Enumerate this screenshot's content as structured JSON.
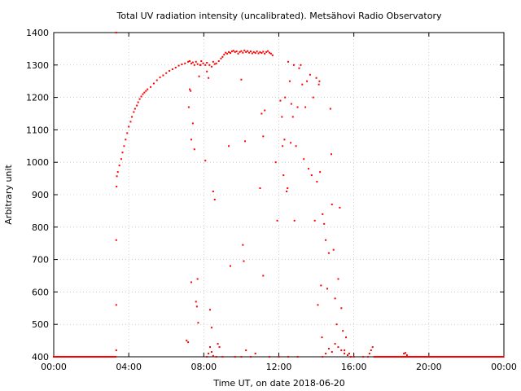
{
  "chart_data": {
    "type": "scatter",
    "title": "Total UV radiation intensity (uncalibrated). Metsähovi Radio Observatory",
    "xlabel": "Time UT, on date 2018-06-20",
    "ylabel": "Arbitrary unit",
    "xlim": [
      "00:00",
      "24:00"
    ],
    "ylim": [
      400,
      1400
    ],
    "x_ticks": [
      "00:00",
      "04:00",
      "08:00",
      "12:00",
      "16:00",
      "20:00",
      "00:00"
    ],
    "y_ticks": [
      400,
      500,
      600,
      700,
      800,
      900,
      1000,
      1100,
      1200,
      1300,
      1400
    ],
    "grid": true,
    "marker_color": "#ff0000",
    "series": [
      {
        "points": [
          [
            "03:20",
            1400
          ],
          [
            "03:20",
            420
          ],
          [
            "03:20",
            560
          ],
          [
            "03:20",
            760
          ],
          [
            "03:21",
            925
          ],
          [
            "03:22",
            957
          ],
          [
            "03:25",
            970
          ],
          [
            "03:30",
            990
          ],
          [
            "03:36",
            1010
          ],
          [
            "03:40",
            1030
          ],
          [
            "03:45",
            1050
          ],
          [
            "03:50",
            1070
          ],
          [
            "03:55",
            1090
          ],
          [
            "04:00",
            1110
          ],
          [
            "04:06",
            1125
          ],
          [
            "04:10",
            1140
          ],
          [
            "04:16",
            1155
          ],
          [
            "04:20",
            1165
          ],
          [
            "04:26",
            1175
          ],
          [
            "04:30",
            1185
          ],
          [
            "04:35",
            1195
          ],
          [
            "04:40",
            1203
          ],
          [
            "04:45",
            1210
          ],
          [
            "04:50",
            1215
          ],
          [
            "04:55",
            1220
          ],
          [
            "05:00",
            1225
          ],
          [
            "05:10",
            1232
          ],
          [
            "05:20",
            1243
          ],
          [
            "05:30",
            1253
          ],
          [
            "05:40",
            1262
          ],
          [
            "05:50",
            1268
          ],
          [
            "06:00",
            1275
          ],
          [
            "06:10",
            1282
          ],
          [
            "06:20",
            1287
          ],
          [
            "06:30",
            1292
          ],
          [
            "06:40",
            1298
          ],
          [
            "06:50",
            1302
          ],
          [
            "07:00",
            1305
          ],
          [
            "07:10",
            1310
          ],
          [
            "07:15",
            1312
          ],
          [
            "07:20",
            1305
          ],
          [
            "07:25",
            1308
          ],
          [
            "07:30",
            1300
          ],
          [
            "07:35",
            1310
          ],
          [
            "07:40",
            1303
          ],
          [
            "07:48",
            1300
          ],
          [
            "07:52",
            1312
          ],
          [
            "07:58",
            1305
          ],
          [
            "08:05",
            1300
          ],
          [
            "08:10",
            1307
          ],
          [
            "08:18",
            1300
          ],
          [
            "08:25",
            1295
          ],
          [
            "08:30",
            1310
          ],
          [
            "08:35",
            1303
          ],
          [
            "08:40",
            1305
          ],
          [
            "08:48",
            1312
          ],
          [
            "08:55",
            1320
          ],
          [
            "09:00",
            1325
          ],
          [
            "09:05",
            1332
          ],
          [
            "09:10",
            1338
          ],
          [
            "09:15",
            1335
          ],
          [
            "09:20",
            1340
          ],
          [
            "09:25",
            1337
          ],
          [
            "09:30",
            1342
          ],
          [
            "09:35",
            1344
          ],
          [
            "09:40",
            1340
          ],
          [
            "09:45",
            1342
          ],
          [
            "09:50",
            1335
          ],
          [
            "09:55",
            1340
          ],
          [
            "10:00",
            1343
          ],
          [
            "10:05",
            1338
          ],
          [
            "10:10",
            1345
          ],
          [
            "10:15",
            1340
          ],
          [
            "10:20",
            1343
          ],
          [
            "10:25",
            1338
          ],
          [
            "10:30",
            1342
          ],
          [
            "10:35",
            1336
          ],
          [
            "10:40",
            1340
          ],
          [
            "10:45",
            1337
          ],
          [
            "10:50",
            1342
          ],
          [
            "10:55",
            1336
          ],
          [
            "11:00",
            1340
          ],
          [
            "11:05",
            1337
          ],
          [
            "11:10",
            1341
          ],
          [
            "11:15",
            1335
          ],
          [
            "11:20",
            1340
          ],
          [
            "11:25",
            1343
          ],
          [
            "11:30",
            1338
          ],
          [
            "11:35",
            1335
          ],
          [
            "11:40",
            1330
          ],
          [
            "07:12",
            1170
          ],
          [
            "07:15",
            1225
          ],
          [
            "07:18",
            1220
          ],
          [
            "07:20",
            1070
          ],
          [
            "07:25",
            1120
          ],
          [
            "07:30",
            1040
          ],
          [
            "07:05",
            450
          ],
          [
            "07:10",
            445
          ],
          [
            "07:20",
            630
          ],
          [
            "07:35",
            570
          ],
          [
            "07:38",
            555
          ],
          [
            "07:42",
            505
          ],
          [
            "07:40",
            640
          ],
          [
            "07:45",
            1265
          ],
          [
            "07:50",
            1300
          ],
          [
            "08:05",
            1005
          ],
          [
            "08:10",
            1280
          ],
          [
            "08:15",
            1260
          ],
          [
            "08:20",
            545
          ],
          [
            "08:25",
            490
          ],
          [
            "08:30",
            910
          ],
          [
            "08:35",
            885
          ],
          [
            "08:45",
            440
          ],
          [
            "08:50",
            430
          ],
          [
            "09:20",
            1050
          ],
          [
            "09:25",
            680
          ],
          [
            "10:00",
            1255
          ],
          [
            "10:05",
            745
          ],
          [
            "10:08",
            695
          ],
          [
            "10:12",
            1065
          ],
          [
            "10:15",
            420
          ],
          [
            "10:45",
            410
          ],
          [
            "11:00",
            920
          ],
          [
            "11:05",
            1150
          ],
          [
            "11:10",
            1080
          ],
          [
            "11:10",
            650
          ],
          [
            "11:15",
            1160
          ],
          [
            "11:50",
            1000
          ],
          [
            "11:55",
            820
          ],
          [
            "12:05",
            1190
          ],
          [
            "12:10",
            1140
          ],
          [
            "12:12",
            1050
          ],
          [
            "12:15",
            960
          ],
          [
            "12:18",
            1070
          ],
          [
            "12:20",
            1200
          ],
          [
            "12:25",
            910
          ],
          [
            "12:28",
            920
          ],
          [
            "12:30",
            1310
          ],
          [
            "12:35",
            1250
          ],
          [
            "12:38",
            1060
          ],
          [
            "12:40",
            1180
          ],
          [
            "12:45",
            1140
          ],
          [
            "12:48",
            1300
          ],
          [
            "12:50",
            820
          ],
          [
            "12:55",
            1050
          ],
          [
            "13:00",
            1170
          ],
          [
            "13:05",
            1290
          ],
          [
            "13:10",
            1300
          ],
          [
            "13:15",
            1240
          ],
          [
            "13:20",
            1010
          ],
          [
            "13:25",
            1170
          ],
          [
            "13:30",
            1250
          ],
          [
            "13:35",
            980
          ],
          [
            "13:40",
            1270
          ],
          [
            "13:45",
            960
          ],
          [
            "13:50",
            1200
          ],
          [
            "13:55",
            820
          ],
          [
            "14:00",
            1260
          ],
          [
            "14:02",
            940
          ],
          [
            "14:05",
            560
          ],
          [
            "14:08",
            1240
          ],
          [
            "14:10",
            1250
          ],
          [
            "14:12",
            970
          ],
          [
            "14:15",
            620
          ],
          [
            "14:18",
            460
          ],
          [
            "14:20",
            840
          ],
          [
            "14:25",
            810
          ],
          [
            "14:30",
            760
          ],
          [
            "14:35",
            610
          ],
          [
            "14:40",
            720
          ],
          [
            "14:45",
            1165
          ],
          [
            "14:48",
            1025
          ],
          [
            "14:50",
            870
          ],
          [
            "14:55",
            730
          ],
          [
            "15:00",
            580
          ],
          [
            "15:05",
            500
          ],
          [
            "15:10",
            640
          ],
          [
            "15:15",
            860
          ],
          [
            "15:20",
            550
          ],
          [
            "15:25",
            480
          ],
          [
            "15:30",
            420
          ],
          [
            "15:35",
            460
          ],
          [
            "15:40",
            405
          ],
          [
            "15:45",
            410
          ],
          [
            "16:00",
            400
          ],
          [
            "16:30",
            400
          ],
          [
            "16:45",
            400
          ],
          [
            "16:50",
            410
          ],
          [
            "16:55",
            420
          ],
          [
            "17:00",
            430
          ],
          [
            "18:40",
            410
          ],
          [
            "18:45",
            412
          ],
          [
            "18:50",
            405
          ],
          [
            "08:10",
            400
          ],
          [
            "08:15",
            410
          ],
          [
            "08:20",
            430
          ],
          [
            "08:25",
            415
          ],
          [
            "08:30",
            403
          ],
          [
            "08:40",
            400
          ],
          [
            "09:00",
            400
          ],
          [
            "09:40",
            400
          ],
          [
            "10:00",
            400
          ],
          [
            "10:30",
            400
          ],
          [
            "11:30",
            400
          ],
          [
            "12:00",
            400
          ],
          [
            "12:30",
            400
          ],
          [
            "13:00",
            400
          ],
          [
            "14:20",
            400
          ],
          [
            "14:30",
            410
          ],
          [
            "14:40",
            425
          ],
          [
            "14:50",
            415
          ],
          [
            "15:00",
            440
          ],
          [
            "15:10",
            430
          ],
          [
            "15:20",
            420
          ],
          [
            "15:30",
            410
          ],
          [
            "15:50",
            400
          ]
        ]
      }
    ],
    "baseline": {
      "value": 400,
      "from": "00:00",
      "to": "03:20",
      "from2": "17:05",
      "to2": "24:00"
    }
  }
}
